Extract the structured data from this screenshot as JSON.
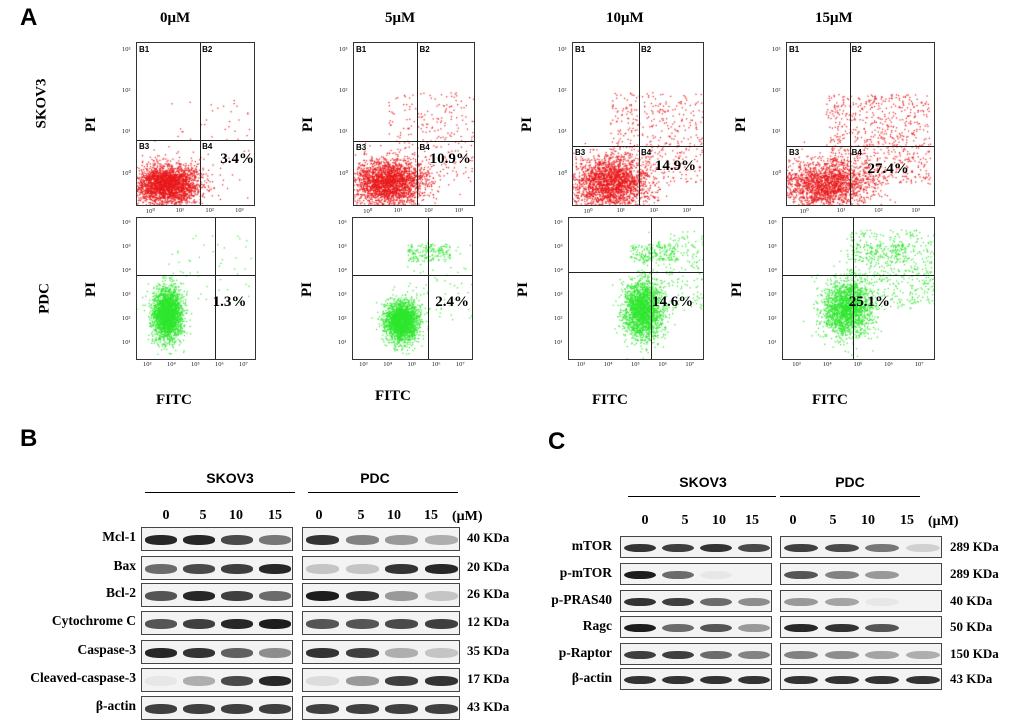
{
  "panels": {
    "a": "A",
    "b": "B",
    "c": "C"
  },
  "panelA": {
    "concentrations": [
      "0μM",
      "5μM",
      "10μM",
      "15μM"
    ],
    "rows": [
      "SKOV3",
      "PDC"
    ],
    "y_axis_label": "PI",
    "x_axis_label": "FITC",
    "quadrants": [
      "B1",
      "B2",
      "B3",
      "B4"
    ],
    "skov3_pct": [
      "3.4%",
      "10.9%",
      "14.9%",
      "27.4%"
    ],
    "pdc_pct": [
      "1.3%",
      "2.4%",
      "14.6%",
      "25.1%"
    ],
    "skov3_ticks_y": [
      "10³",
      "10²",
      "10¹",
      "10⁰"
    ],
    "skov3_ticks_x": [
      "10⁰",
      "10¹",
      "10²",
      "10³"
    ],
    "pdc_ticks_y": [
      "10⁶",
      "10⁵",
      "10⁴",
      "10³",
      "10²",
      "10¹"
    ],
    "pdc_ticks_x": [
      "10³",
      "10⁴",
      "10⁵",
      "10⁶",
      "10⁷"
    ],
    "colors": {
      "skov3": "#e8181a",
      "pdc": "#2ee62e"
    }
  },
  "panelB": {
    "groups": [
      "SKOV3",
      "PDC"
    ],
    "lanes": [
      "0",
      "5",
      "10",
      "15"
    ],
    "unit": "(μM)",
    "proteins": [
      "Mcl-1",
      "Bax",
      "Bcl-2",
      "Cytochrome  C",
      "Caspase-3",
      "Cleaved-caspase-3",
      "β-actin"
    ],
    "sizes": [
      "40 KDa",
      "20 KDa",
      "26 KDa",
      "12 KDa",
      "35 KDa",
      "17 KDa",
      "43 KDa"
    ],
    "skov3_intensity": [
      [
        0.9,
        0.9,
        0.75,
        0.55
      ],
      [
        0.6,
        0.75,
        0.8,
        0.9
      ],
      [
        0.7,
        0.9,
        0.8,
        0.6
      ],
      [
        0.7,
        0.8,
        0.9,
        0.95
      ],
      [
        0.9,
        0.85,
        0.65,
        0.45
      ],
      [
        0.05,
        0.3,
        0.75,
        0.9
      ],
      [
        0.8,
        0.8,
        0.8,
        0.8
      ]
    ],
    "pdc_intensity": [
      [
        0.85,
        0.5,
        0.4,
        0.3
      ],
      [
        0.2,
        0.2,
        0.85,
        0.9
      ],
      [
        0.95,
        0.85,
        0.4,
        0.2
      ],
      [
        0.7,
        0.7,
        0.75,
        0.8
      ],
      [
        0.85,
        0.8,
        0.3,
        0.2
      ],
      [
        0.1,
        0.4,
        0.8,
        0.85
      ],
      [
        0.8,
        0.8,
        0.8,
        0.8
      ]
    ]
  },
  "panelC": {
    "groups": [
      "SKOV3",
      "PDC"
    ],
    "lanes": [
      "0",
      "5",
      "10",
      "15"
    ],
    "unit": "(μM)",
    "proteins": [
      "mTOR",
      "p-mTOR",
      "p-PRAS40",
      "Ragc",
      "p-Raptor",
      "β-actin"
    ],
    "sizes": [
      "289 KDa",
      "289 KDa",
      "40 KDa",
      "50 KDa",
      "150 KDa",
      "43 KDa"
    ],
    "skov3_intensity": [
      [
        0.85,
        0.8,
        0.85,
        0.75
      ],
      [
        0.95,
        0.6,
        0.05,
        0.0
      ],
      [
        0.85,
        0.8,
        0.6,
        0.45
      ],
      [
        0.95,
        0.6,
        0.7,
        0.4
      ],
      [
        0.8,
        0.8,
        0.6,
        0.5
      ],
      [
        0.85,
        0.85,
        0.85,
        0.85
      ]
    ],
    "pdc_intensity": [
      [
        0.8,
        0.75,
        0.55,
        0.15
      ],
      [
        0.7,
        0.5,
        0.4,
        0.0
      ],
      [
        0.4,
        0.35,
        0.05,
        0.0
      ],
      [
        0.9,
        0.85,
        0.7,
        0.0
      ],
      [
        0.5,
        0.45,
        0.35,
        0.3
      ],
      [
        0.85,
        0.85,
        0.85,
        0.85
      ]
    ]
  }
}
